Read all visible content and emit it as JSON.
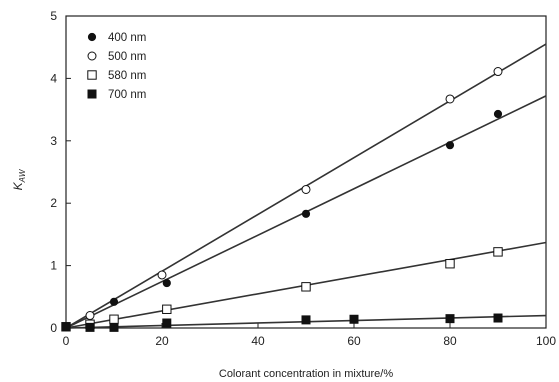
{
  "chart_data": {
    "type": "scatter",
    "xlabel": "Colorant concentration in mixture/%",
    "ylabel_main": "K",
    "ylabel_sub": "AW",
    "xlim": [
      0,
      100
    ],
    "ylim": [
      0,
      5
    ],
    "xticks": [
      "0",
      "20",
      "40",
      "60",
      "80",
      "100"
    ],
    "yticks": [
      "0",
      "1",
      "2",
      "3",
      "4",
      "5"
    ],
    "legend_position": "top-left",
    "grid": false,
    "series": [
      {
        "name": "400 nm",
        "marker": "filled-circle",
        "points": [
          [
            0,
            0.02
          ],
          [
            5,
            0.2
          ],
          [
            10,
            0.42
          ],
          [
            21,
            0.72
          ],
          [
            50,
            1.83
          ],
          [
            80,
            2.93
          ],
          [
            90,
            3.43
          ]
        ],
        "fit": [
          [
            0,
            0.0
          ],
          [
            100,
            3.72
          ]
        ]
      },
      {
        "name": "500 nm",
        "marker": "open-circle",
        "points": [
          [
            0,
            0.02
          ],
          [
            5,
            0.2
          ],
          [
            20,
            0.85
          ],
          [
            50,
            2.22
          ],
          [
            80,
            3.67
          ],
          [
            90,
            4.11
          ]
        ],
        "fit": [
          [
            0,
            0.0
          ],
          [
            100,
            4.55
          ]
        ]
      },
      {
        "name": "580 nm",
        "marker": "open-square",
        "points": [
          [
            0,
            0.02
          ],
          [
            5,
            0.06
          ],
          [
            10,
            0.14
          ],
          [
            21,
            0.3
          ],
          [
            50,
            0.66
          ],
          [
            80,
            1.03
          ],
          [
            90,
            1.22
          ]
        ],
        "fit": [
          [
            0,
            0.0
          ],
          [
            100,
            1.37
          ]
        ]
      },
      {
        "name": "700 nm",
        "marker": "filled-square",
        "points": [
          [
            0,
            0.02
          ],
          [
            5,
            0.01
          ],
          [
            10,
            0.01
          ],
          [
            21,
            0.08
          ],
          [
            50,
            0.13
          ],
          [
            60,
            0.14
          ],
          [
            80,
            0.15
          ],
          [
            90,
            0.16
          ]
        ],
        "fit": [
          [
            0,
            0.0
          ],
          [
            100,
            0.2
          ]
        ]
      }
    ]
  }
}
